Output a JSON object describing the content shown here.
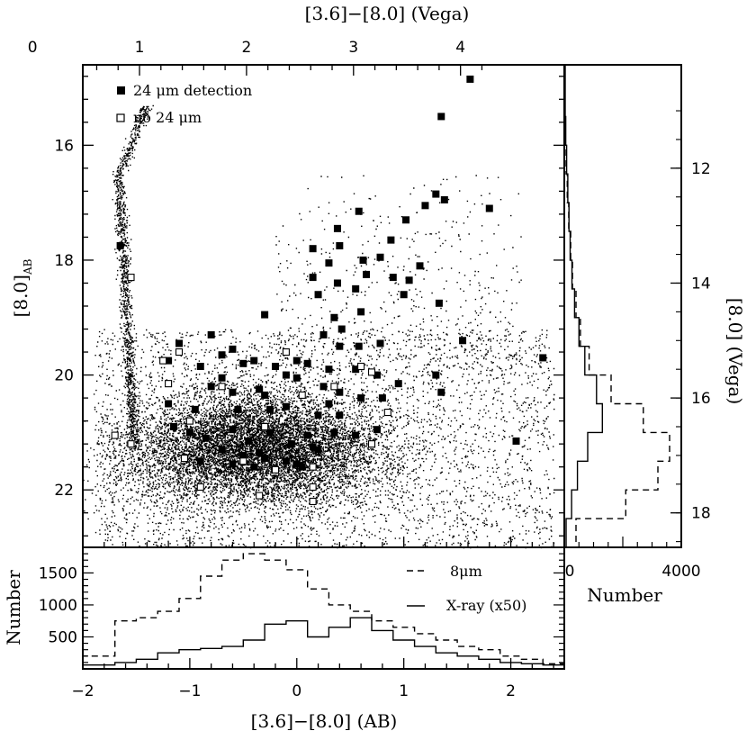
{
  "chart_data": [
    {
      "type": "scatter",
      "panel": "main color-magnitude diagram",
      "xlabel_bottom": "[3.6]−[8.0] (AB)",
      "xlabel_top": "[3.6]−[8.0] (Vega)",
      "ylabel_left": "[8.0]",
      "ylabel_left_sub": "AB",
      "ylabel_right": "[8.0] (Vega)",
      "xlim": [
        -2,
        2.5
      ],
      "ylim": [
        23,
        14.6
      ],
      "x_ticks_bottom": [
        "−2",
        "−1",
        "0",
        "1",
        "2"
      ],
      "x_ticks_top": [
        "0",
        "1",
        "2",
        "3",
        "4"
      ],
      "y_ticks_left": [
        "16",
        "18",
        "20",
        "22"
      ],
      "y_ticks_right": [
        "12",
        "14",
        "16",
        "18"
      ],
      "legend": [
        "24 μm detection",
        "no 24 μm"
      ],
      "legend_placement": "top-left",
      "background_points": "dense cloud of ~40,000 8 μm sources centred near ([3.6]−[8.0], [8.0]) ≈ (−0.3, 21.3), plus a thin blue stellar sequence near x ≈ −1.6",
      "series": [
        {
          "name": "24 μm detection",
          "marker": "filled-square",
          "points": [
            [
              1.62,
              14.85
            ],
            [
              1.35,
              15.5
            ],
            [
              1.3,
              16.85
            ],
            [
              1.38,
              16.95
            ],
            [
              1.2,
              17.05
            ],
            [
              1.8,
              17.1
            ],
            [
              0.58,
              17.15
            ],
            [
              1.02,
              17.3
            ],
            [
              -1.65,
              17.75
            ],
            [
              0.15,
              17.8
            ],
            [
              0.4,
              17.75
            ],
            [
              0.88,
              17.65
            ],
            [
              0.38,
              17.45
            ],
            [
              0.62,
              18.0
            ],
            [
              0.3,
              18.05
            ],
            [
              0.65,
              18.25
            ],
            [
              0.78,
              17.95
            ],
            [
              1.05,
              18.35
            ],
            [
              0.15,
              18.3
            ],
            [
              0.38,
              18.4
            ],
            [
              0.55,
              18.5
            ],
            [
              0.9,
              18.3
            ],
            [
              1.15,
              18.1
            ],
            [
              1.0,
              18.6
            ],
            [
              0.2,
              18.6
            ],
            [
              0.6,
              18.9
            ],
            [
              0.35,
              19.0
            ],
            [
              -0.3,
              18.95
            ],
            [
              0.25,
              19.3
            ],
            [
              -0.8,
              19.3
            ],
            [
              1.33,
              18.75
            ],
            [
              1.55,
              19.4
            ],
            [
              -1.1,
              19.45
            ],
            [
              0.42,
              19.2
            ],
            [
              0.58,
              19.5
            ],
            [
              0.4,
              19.5
            ],
            [
              0.78,
              19.45
            ],
            [
              -0.6,
              19.55
            ],
            [
              -0.7,
              19.65
            ],
            [
              -1.2,
              19.75
            ],
            [
              -0.9,
              19.85
            ],
            [
              -0.5,
              19.8
            ],
            [
              -0.4,
              19.75
            ],
            [
              -0.2,
              19.85
            ],
            [
              0.0,
              19.75
            ],
            [
              0.1,
              19.8
            ],
            [
              0.3,
              19.9
            ],
            [
              0.55,
              19.9
            ],
            [
              0.75,
              20.0
            ],
            [
              2.3,
              19.7
            ],
            [
              -0.1,
              20.0
            ],
            [
              0.0,
              20.05
            ],
            [
              -0.7,
              20.05
            ],
            [
              -0.8,
              20.2
            ],
            [
              -0.6,
              20.3
            ],
            [
              -0.35,
              20.25
            ],
            [
              -0.3,
              20.35
            ],
            [
              0.25,
              20.2
            ],
            [
              0.4,
              20.3
            ],
            [
              0.6,
              20.4
            ],
            [
              0.95,
              20.15
            ],
            [
              1.35,
              20.3
            ],
            [
              -1.2,
              20.5
            ],
            [
              -0.95,
              20.6
            ],
            [
              -0.55,
              20.6
            ],
            [
              -0.25,
              20.6
            ],
            [
              -0.1,
              20.55
            ],
            [
              0.3,
              20.5
            ],
            [
              0.2,
              20.7
            ],
            [
              0.4,
              20.7
            ],
            [
              0.8,
              20.4
            ],
            [
              1.3,
              20.0
            ],
            [
              -1.15,
              20.9
            ],
            [
              -1.0,
              21.0
            ],
            [
              -0.85,
              21.1
            ],
            [
              -0.6,
              20.95
            ],
            [
              -0.45,
              21.15
            ],
            [
              -0.25,
              21.0
            ],
            [
              -0.05,
              21.2
            ],
            [
              0.1,
              21.05
            ],
            [
              0.2,
              21.3
            ],
            [
              0.35,
              21.0
            ],
            [
              0.55,
              21.05
            ],
            [
              0.75,
              20.95
            ],
            [
              -0.7,
              21.3
            ],
            [
              -0.5,
              21.4
            ],
            [
              -0.35,
              21.35
            ],
            [
              -0.1,
              21.5
            ],
            [
              0.0,
              21.55
            ],
            [
              -0.4,
              21.6
            ],
            [
              -0.6,
              21.55
            ],
            [
              0.05,
              21.6
            ],
            [
              2.05,
              21.15
            ],
            [
              -0.9,
              21.5
            ],
            [
              -0.3,
              21.45
            ],
            [
              0.15,
              21.25
            ]
          ]
        },
        {
          "name": "no 24 μm",
          "marker": "open-square",
          "points": [
            [
              -1.55,
              18.3
            ],
            [
              -1.7,
              21.05
            ],
            [
              -1.55,
              21.2
            ],
            [
              -0.1,
              19.6
            ],
            [
              -1.1,
              19.6
            ],
            [
              -1.25,
              19.75
            ],
            [
              -1.2,
              20.15
            ],
            [
              0.6,
              19.85
            ],
            [
              0.7,
              19.95
            ],
            [
              0.35,
              20.2
            ],
            [
              -0.7,
              20.2
            ],
            [
              0.05,
              20.35
            ],
            [
              0.85,
              20.65
            ],
            [
              -1.0,
              20.8
            ],
            [
              -0.3,
              20.9
            ],
            [
              0.7,
              21.2
            ],
            [
              -1.05,
              21.45
            ],
            [
              -0.5,
              21.5
            ],
            [
              -0.2,
              21.65
            ],
            [
              0.15,
              21.6
            ],
            [
              -0.9,
              21.95
            ],
            [
              0.15,
              21.95
            ],
            [
              -0.35,
              22.1
            ],
            [
              0.15,
              22.2
            ]
          ]
        }
      ]
    },
    {
      "type": "histogram",
      "panel": "bottom: color distribution",
      "xlabel": "[3.6]−[8.0] (AB)",
      "ylabel": "Number",
      "xlim": [
        -2,
        2.5
      ],
      "ylim": [
        0,
        1900
      ],
      "y_ticks": [
        "500",
        "1000",
        "1500"
      ],
      "legend_placement": "top-right",
      "bin_edges": [
        -2.0,
        -1.7,
        -1.5,
        -1.3,
        -1.1,
        -0.9,
        -0.7,
        -0.5,
        -0.3,
        -0.1,
        0.1,
        0.3,
        0.5,
        0.7,
        0.9,
        1.1,
        1.3,
        1.5,
        1.7,
        1.9,
        2.1,
        2.3,
        2.5
      ],
      "series": [
        {
          "name": "8μm",
          "style": "dashed",
          "values": [
            200,
            750,
            800,
            900,
            1100,
            1450,
            1700,
            1800,
            1700,
            1550,
            1250,
            1000,
            900,
            750,
            650,
            550,
            450,
            350,
            300,
            200,
            150,
            80
          ]
        },
        {
          "name": "X-ray (x50)",
          "style": "solid",
          "values": [
            60,
            100,
            150,
            250,
            300,
            320,
            350,
            450,
            700,
            750,
            500,
            650,
            800,
            600,
            450,
            350,
            250,
            200,
            150,
            100,
            80,
            60
          ]
        }
      ]
    },
    {
      "type": "histogram",
      "panel": "right: magnitude distribution",
      "orientation": "horizontal",
      "xlabel": "Number",
      "xlim": [
        0,
        4000
      ],
      "x_ticks": [
        "0",
        "4000"
      ],
      "ylim": [
        23,
        14.6
      ],
      "bin_edges": [
        14.6,
        15.5,
        16.0,
        16.5,
        17.0,
        17.5,
        18.0,
        18.5,
        19.0,
        19.5,
        20.0,
        20.5,
        21.0,
        21.5,
        22.0,
        22.5,
        23.0
      ],
      "series": [
        {
          "name": "8μm",
          "style": "dashed",
          "values": [
            20,
            40,
            60,
            100,
            150,
            220,
            280,
            400,
            550,
            850,
            1600,
            2700,
            3600,
            3200,
            2100,
            400
          ]
        },
        {
          "name": "X-ray (x50)",
          "style": "solid",
          "values": [
            30,
            50,
            80,
            120,
            160,
            200,
            260,
            350,
            500,
            700,
            1100,
            1300,
            800,
            450,
            250,
            60
          ]
        }
      ]
    }
  ]
}
